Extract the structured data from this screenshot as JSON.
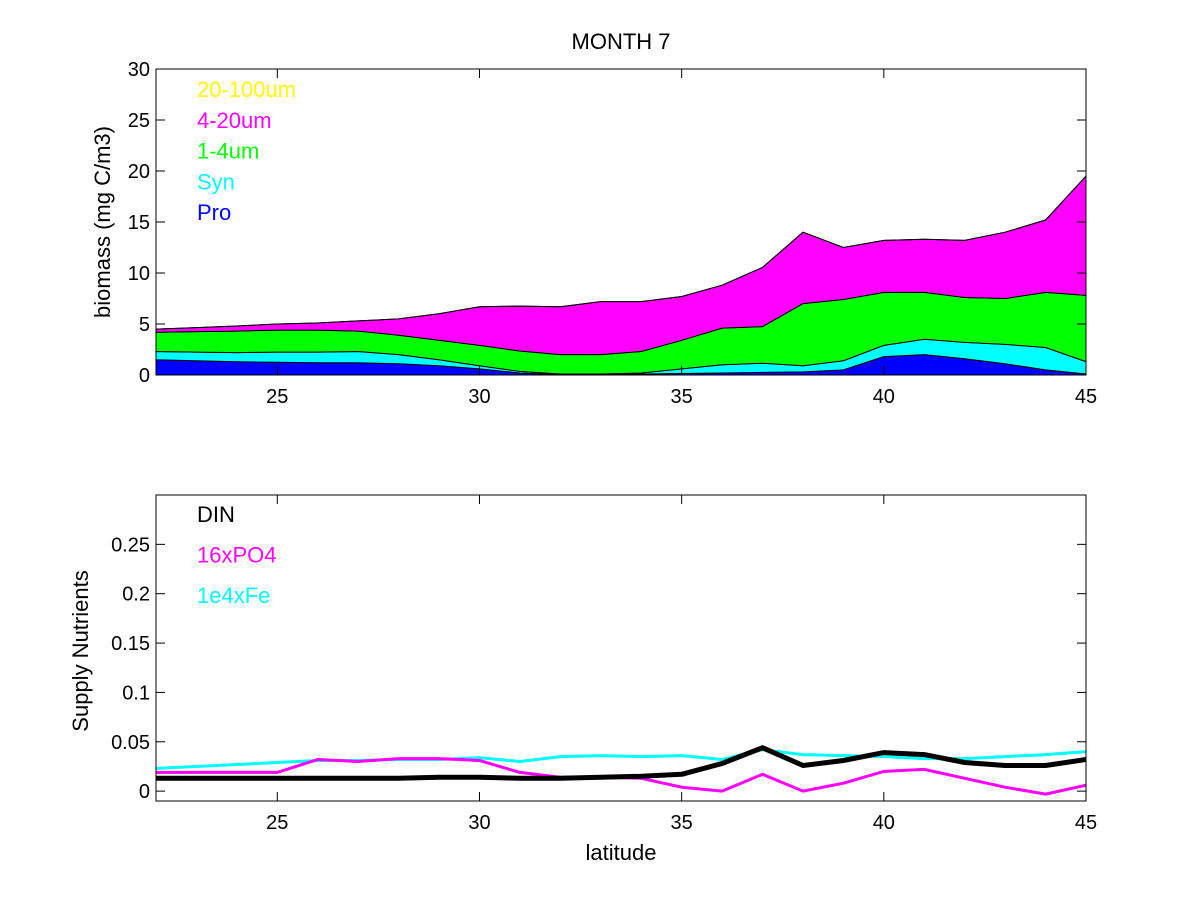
{
  "figure": {
    "title": "MONTH 7",
    "xlabel": "latitude"
  },
  "chart_data": [
    {
      "type": "area",
      "stacked": true,
      "ylabel": "biomass (mg C/m3)",
      "xlim": [
        22,
        45
      ],
      "ylim": [
        0,
        30
      ],
      "xticks": [
        25,
        30,
        35,
        40,
        45
      ],
      "yticks": [
        0,
        5,
        10,
        15,
        20,
        25,
        30
      ],
      "grid": false,
      "legend_placement": "top-left",
      "x": [
        22,
        23,
        24,
        25,
        26,
        27,
        28,
        29,
        30,
        31,
        32,
        33,
        34,
        35,
        36,
        37,
        38,
        39,
        40,
        41,
        42,
        43,
        44,
        45
      ],
      "series": [
        {
          "name": "Pro",
          "color": "#0000ff",
          "values": [
            1.5,
            1.4,
            1.3,
            1.25,
            1.2,
            1.2,
            1.1,
            0.9,
            0.6,
            0.2,
            0.05,
            0.05,
            0.1,
            0.15,
            0.2,
            0.25,
            0.3,
            0.5,
            1.8,
            2.0,
            1.6,
            1.1,
            0.5,
            0.1
          ]
        },
        {
          "name": "Syn",
          "color": "#00ffff",
          "values": [
            0.8,
            0.85,
            0.9,
            1.0,
            1.05,
            1.1,
            0.9,
            0.6,
            0.3,
            0.15,
            0.05,
            0.05,
            0.1,
            0.45,
            0.8,
            0.9,
            0.6,
            0.9,
            1.1,
            1.5,
            1.6,
            1.9,
            2.2,
            1.2
          ]
        },
        {
          "name": "1-4um",
          "color": "#00ff00",
          "values": [
            1.9,
            2.0,
            2.1,
            2.15,
            2.15,
            2.0,
            1.9,
            1.9,
            2.0,
            2.0,
            1.9,
            1.9,
            2.1,
            2.8,
            3.6,
            3.6,
            6.1,
            6.0,
            5.2,
            4.6,
            4.4,
            4.5,
            5.4,
            6.5
          ]
        },
        {
          "name": "4-20um",
          "color": "#ff00ff",
          "values": [
            0.3,
            0.4,
            0.5,
            0.6,
            0.7,
            1.0,
            1.6,
            2.6,
            3.8,
            4.4,
            4.7,
            5.2,
            4.9,
            4.3,
            4.2,
            5.8,
            7.0,
            5.1,
            5.1,
            5.2,
            5.6,
            6.5,
            7.1,
            11.7
          ]
        },
        {
          "name": "20-100um",
          "color": "#ffff00",
          "values": [
            0,
            0,
            0,
            0,
            0,
            0,
            0,
            0,
            0,
            0,
            0,
            0,
            0,
            0,
            0,
            0,
            0,
            0,
            0,
            0,
            0,
            0,
            0,
            0
          ]
        }
      ]
    },
    {
      "type": "line",
      "ylabel": "Supply Nutrients",
      "xlabel": "latitude",
      "xlim": [
        22,
        45
      ],
      "ylim": [
        -0.01,
        0.3
      ],
      "xticks": [
        25,
        30,
        35,
        40,
        45
      ],
      "yticks": [
        0,
        0.05,
        0.1,
        0.15,
        0.2,
        0.25
      ],
      "grid": false,
      "legend_placement": "top-left",
      "x": [
        22,
        23,
        24,
        25,
        26,
        27,
        28,
        29,
        30,
        31,
        32,
        33,
        34,
        35,
        36,
        37,
        38,
        39,
        40,
        41,
        42,
        43,
        44,
        45
      ],
      "series": [
        {
          "name": "DIN",
          "color": "#000000",
          "values": [
            0.013,
            0.013,
            0.013,
            0.013,
            0.013,
            0.013,
            0.013,
            0.014,
            0.014,
            0.013,
            0.013,
            0.014,
            0.015,
            0.017,
            0.028,
            0.044,
            0.026,
            0.031,
            0.039,
            0.037,
            0.029,
            0.026,
            0.026,
            0.032
          ]
        },
        {
          "name": "16xPO4",
          "color": "#ff00ff",
          "values": [
            0.019,
            0.019,
            0.019,
            0.019,
            0.032,
            0.03,
            0.033,
            0.033,
            0.031,
            0.019,
            0.014,
            0.014,
            0.013,
            0.004,
            0.0,
            0.017,
            0.0,
            0.008,
            0.02,
            0.022,
            0.013,
            0.004,
            -0.003,
            0.006
          ]
        },
        {
          "name": "1e4xFe",
          "color": "#00ffff",
          "values": [
            0.023,
            0.025,
            0.027,
            0.029,
            0.031,
            0.031,
            0.032,
            0.032,
            0.034,
            0.03,
            0.035,
            0.036,
            0.035,
            0.036,
            0.032,
            0.042,
            0.037,
            0.036,
            0.035,
            0.033,
            0.033,
            0.035,
            0.037,
            0.04
          ]
        }
      ]
    }
  ]
}
